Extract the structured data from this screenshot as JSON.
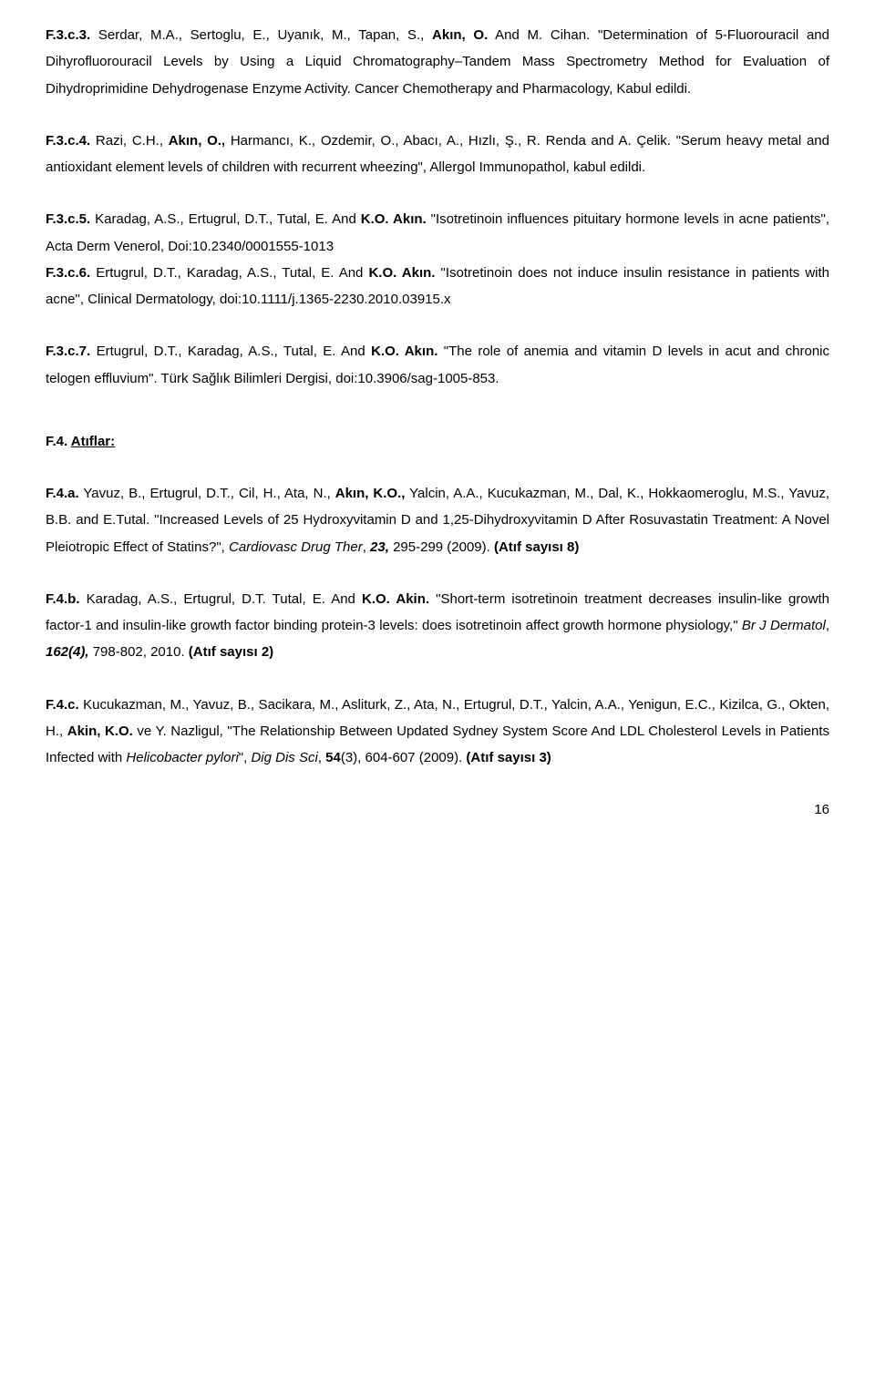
{
  "entries": {
    "f3c3": {
      "label": "F.3.c.3.",
      "authors_pre": " Serdar, M.A., Sertoglu, E., Uyanık, M., Tapan, S., ",
      "author_bold": "Akın, O.",
      "authors_post": " And M. Cihan. \"Determination of 5-Fluorouracil and Dihyrofluorouracil Levels by Using a Liquid Chromatography–Tandem Mass Spectrometry Method for Evaluation of Dihydroprimidine Dehydrogenase Enzyme Activity. Cancer Chemotherapy and Pharmacology, Kabul edildi."
    },
    "f3c4": {
      "label": "F.3.c.4.",
      "authors_pre": " Razi, C.H., ",
      "author_bold": "Akın, O.,",
      "authors_post": " Harmancı, K., Ozdemir, O., Abacı, A., Hızlı, Ş., R. Renda and A. Çelik. \"Serum heavy metal and antioxidant element levels of children with recurrent wheezing\", Allergol Immunopathol, kabul edildi."
    },
    "f3c5": {
      "label": "F.3.c.5.",
      "authors_pre": " Karadag, A.S., Ertugrul, D.T., Tutal, E. And ",
      "author_bold": "K.O. Akın.",
      "authors_post": " \"Isotretinoin influences pituitary hormone levels in acne patients\", Acta Derm Venerol, Doi:10.2340/0001555-1013"
    },
    "f3c6": {
      "label": "F.3.c.6.",
      "authors_pre": " Ertugrul, D.T., Karadag, A.S., Tutal, E. And ",
      "author_bold": "K.O. Akın.",
      "authors_post": " \"Isotretinoin does not induce insulin resistance in patients with acne\", Clinical Dermatology, doi:10.1111/j.1365-2230.2010.03915.x"
    },
    "f3c7": {
      "label": "F.3.c.7.",
      "authors_pre": " Ertugrul, D.T., Karadag, A.S., Tutal, E. And ",
      "author_bold": "K.O. Akın.",
      "authors_post": " \"The role of anemia and vitamin D levels in acut and chronic telogen effluvium\". Türk Sağlık Bilimleri Dergisi, doi:10.3906/sag-1005-853."
    }
  },
  "section_f4": {
    "label": "F.4. ",
    "title": "Atıflar:"
  },
  "citations": {
    "f4a": {
      "label": "F.4.a.",
      "pre": " Yavuz, B., Ertugrul, D.T., Cil, H., Ata, N., ",
      "bold1": "Akın, K.O.,",
      "mid": " Yalcin, A.A., Kucukazman, M., Dal, K., Hokkaomeroglu, M.S., Yavuz, B.B. and E.Tutal. \"Increased Levels of 25 Hydroxyvitamin D and 1,25-Dihydroxyvitamin D After Rosuvastatin Treatment: A Novel Pleiotropic Effect of Statins?\", ",
      "journal": "Cardiovasc Drug Ther",
      "volref": ", ",
      "vol": "23,",
      "pages": " 295-299 (2009). ",
      "count": "(Atıf sayısı 8)"
    },
    "f4b": {
      "label": "F.4.b.",
      "pre": " Karadag, A.S., Ertugrul, D.T. Tutal, E. And ",
      "bold1": "K.O. Akin.",
      "mid": " \"Short-term isotretinoin treatment decreases insulin-like growth factor-1 and insulin-like growth factor binding protein-3 levels: does isotretinoin affect growth hormone physiology,\" ",
      "journal": "Br J Dermatol",
      "volref": ", ",
      "vol": "162(4),",
      "pages": " 798-802, 2010. ",
      "count": "(Atıf sayısı 2)"
    },
    "f4c": {
      "label": "F.4.c.",
      "pre": " Kucukazman, M., Yavuz, B., Sacikara, M., Asliturk, Z., Ata, N., Ertugrul, D.T., Yalcin, A.A., Yenigun, E.C., Kizilca, G., Okten, H., ",
      "bold1": "Akin, K.O.",
      "mid": " ve Y. Nazligul, \"The Relationship Between Updated Sydney System Score And LDL Cholesterol Levels in Patients Infected with ",
      "pathogen": "Helicobacter pylori",
      "mid2": "\", ",
      "journal": "Dig Dis Sci",
      "volref": ", ",
      "vol": "54",
      "pages": "(3), 604-607 (2009). ",
      "count": "(Atıf sayısı 3)"
    }
  },
  "page_number": "16"
}
